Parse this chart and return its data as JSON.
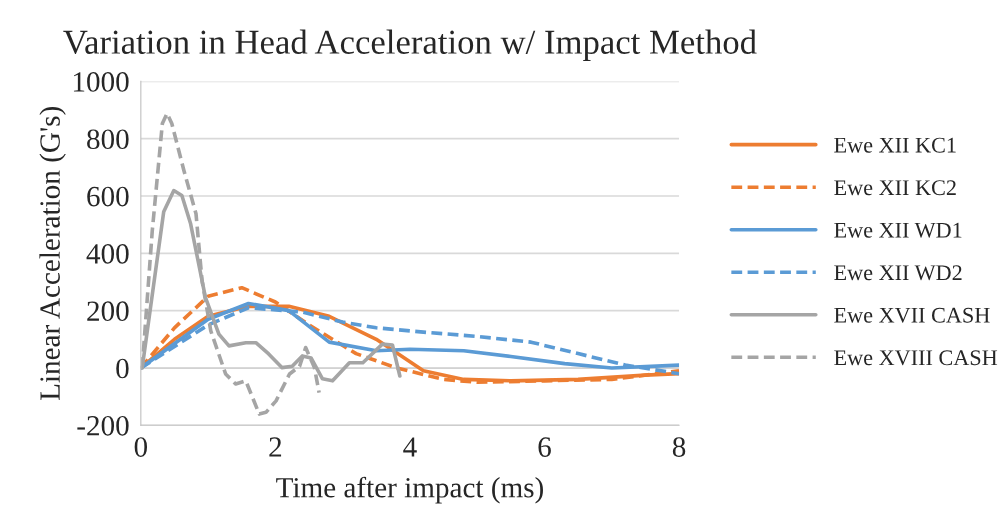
{
  "chart_data": {
    "type": "line",
    "title": "Variation in Head Acceleration w/ Impact Method",
    "xlabel": "Time after impact (ms)",
    "ylabel": "Linear Acceleration (G's)",
    "xlim": [
      0,
      8
    ],
    "xticks": [
      0,
      2,
      4,
      6,
      8
    ],
    "ylim": [
      -200,
      1000
    ],
    "yticks": [
      -200,
      0,
      200,
      400,
      600,
      800,
      1000
    ],
    "grid": "y",
    "legend": "right",
    "series": [
      {
        "name": "Ewe XII KC1",
        "color": "#ed7d31",
        "line_style": "solid",
        "x": [
          0,
          0.5,
          1,
          1.6,
          2.2,
          2.8,
          3.5,
          4.2,
          4.8,
          5.5,
          6.5,
          7.5,
          8
        ],
        "values": [
          0,
          100,
          180,
          215,
          215,
          180,
          100,
          -10,
          -40,
          -45,
          -40,
          -25,
          -20
        ]
      },
      {
        "name": "Ewe XII KC2",
        "color": "#ed7d31",
        "line_style": "dashed",
        "x": [
          0,
          0.5,
          1,
          1.5,
          2,
          2.5,
          3.2,
          3.8,
          4.5,
          5,
          6,
          7,
          8
        ],
        "values": [
          0,
          140,
          250,
          280,
          230,
          150,
          50,
          0,
          -40,
          -50,
          -45,
          -40,
          -10
        ]
      },
      {
        "name": "Ewe XII WD1",
        "color": "#5b9bd5",
        "line_style": "solid",
        "x": [
          0,
          1,
          1.6,
          2.2,
          2.8,
          3.5,
          4,
          4.8,
          5.5,
          6.3,
          7,
          8
        ],
        "values": [
          0,
          170,
          225,
          200,
          90,
          60,
          65,
          60,
          40,
          15,
          0,
          10
        ]
      },
      {
        "name": "Ewe XII WD2",
        "color": "#5b9bd5",
        "line_style": "dashed",
        "x": [
          0,
          1,
          1.6,
          2.4,
          3,
          3.5,
          4.2,
          5,
          5.8,
          6.5,
          7.2,
          8
        ],
        "values": [
          0,
          150,
          210,
          195,
          160,
          140,
          125,
          110,
          90,
          50,
          10,
          -20
        ]
      },
      {
        "name": "Ewe XVII CASH",
        "color": "#a5a5a5",
        "line_style": "solid",
        "x": [
          0.02,
          0.34,
          0.49,
          0.61,
          0.74,
          0.96,
          1.16,
          1.31,
          1.56,
          1.71,
          1.9,
          2.1,
          2.25,
          2.4,
          2.53,
          2.7,
          2.85,
          3.1,
          3.3,
          3.59,
          3.74,
          3.85
        ],
        "values": [
          0,
          545,
          619,
          602,
          503,
          246,
          118,
          77,
          88,
          88,
          49,
          1,
          6,
          42,
          35,
          -38,
          -45,
          18,
          18,
          83,
          80,
          -28
        ]
      },
      {
        "name": "Ewe XVIII CASH",
        "color": "#a5a5a5",
        "line_style": "dashed",
        "x": [
          0.02,
          0.17,
          0.32,
          0.39,
          0.46,
          0.64,
          0.82,
          0.91,
          1.04,
          1.26,
          1.41,
          1.56,
          1.76,
          1.86,
          2.01,
          2.21,
          2.36,
          2.45,
          2.58,
          2.65
        ],
        "values": [
          0,
          479,
          853,
          888,
          853,
          689,
          538,
          304,
          129,
          -21,
          -56,
          -45,
          -161,
          -155,
          -115,
          -21,
          6,
          71,
          1,
          -86
        ]
      }
    ]
  }
}
